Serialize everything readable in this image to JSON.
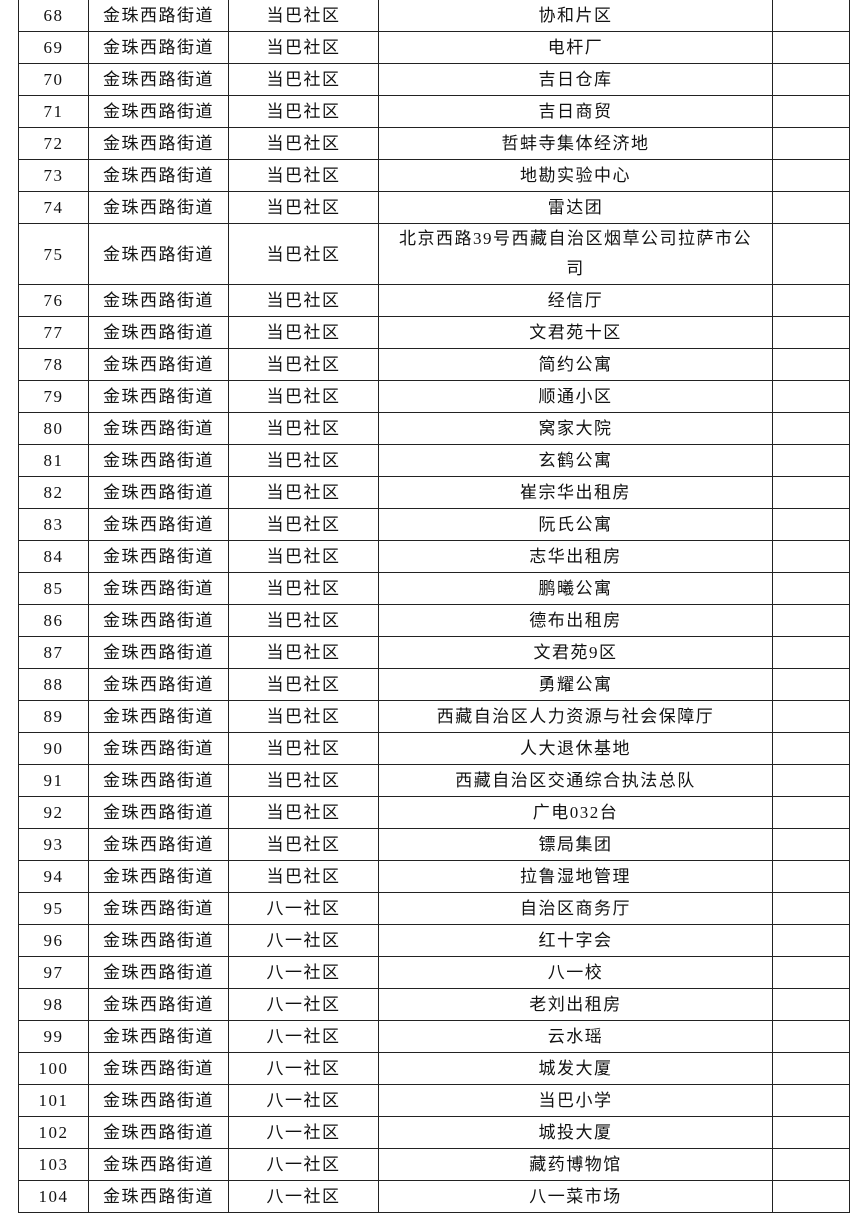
{
  "table": {
    "rows": [
      [
        68,
        "金珠西路街道",
        "当巴社区",
        "协和片区"
      ],
      [
        69,
        "金珠西路街道",
        "当巴社区",
        "电杆厂"
      ],
      [
        70,
        "金珠西路街道",
        "当巴社区",
        "吉日仓库"
      ],
      [
        71,
        "金珠西路街道",
        "当巴社区",
        "吉日商贸"
      ],
      [
        72,
        "金珠西路街道",
        "当巴社区",
        "哲蚌寺集体经济地"
      ],
      [
        73,
        "金珠西路街道",
        "当巴社区",
        "地勘实验中心"
      ],
      [
        74,
        "金珠西路街道",
        "当巴社区",
        "雷达团"
      ],
      [
        75,
        "金珠西路街道",
        "当巴社区",
        "北京西路39号西藏自治区烟草公司拉萨市公司"
      ],
      [
        76,
        "金珠西路街道",
        "当巴社区",
        "经信厅"
      ],
      [
        77,
        "金珠西路街道",
        "当巴社区",
        "文君苑十区"
      ],
      [
        78,
        "金珠西路街道",
        "当巴社区",
        "简约公寓"
      ],
      [
        79,
        "金珠西路街道",
        "当巴社区",
        "顺通小区"
      ],
      [
        80,
        "金珠西路街道",
        "当巴社区",
        "窝家大院"
      ],
      [
        81,
        "金珠西路街道",
        "当巴社区",
        "玄鹤公寓"
      ],
      [
        82,
        "金珠西路街道",
        "当巴社区",
        "崔宗华出租房"
      ],
      [
        83,
        "金珠西路街道",
        "当巴社区",
        "阮氏公寓"
      ],
      [
        84,
        "金珠西路街道",
        "当巴社区",
        "志华出租房"
      ],
      [
        85,
        "金珠西路街道",
        "当巴社区",
        "鹏曦公寓"
      ],
      [
        86,
        "金珠西路街道",
        "当巴社区",
        "德布出租房"
      ],
      [
        87,
        "金珠西路街道",
        "当巴社区",
        "文君苑9区"
      ],
      [
        88,
        "金珠西路街道",
        "当巴社区",
        "勇耀公寓"
      ],
      [
        89,
        "金珠西路街道",
        "当巴社区",
        "西藏自治区人力资源与社会保障厅"
      ],
      [
        90,
        "金珠西路街道",
        "当巴社区",
        "人大退休基地"
      ],
      [
        91,
        "金珠西路街道",
        "当巴社区",
        "西藏自治区交通综合执法总队"
      ],
      [
        92,
        "金珠西路街道",
        "当巴社区",
        "广电032台"
      ],
      [
        93,
        "金珠西路街道",
        "当巴社区",
        "镖局集团"
      ],
      [
        94,
        "金珠西路街道",
        "当巴社区",
        "拉鲁湿地管理"
      ],
      [
        95,
        "金珠西路街道",
        "八一社区",
        "自治区商务厅"
      ],
      [
        96,
        "金珠西路街道",
        "八一社区",
        "红十字会"
      ],
      [
        97,
        "金珠西路街道",
        "八一社区",
        "八一校"
      ],
      [
        98,
        "金珠西路街道",
        "八一社区",
        "老刘出租房"
      ],
      [
        99,
        "金珠西路街道",
        "八一社区",
        "云水瑶"
      ],
      [
        100,
        "金珠西路街道",
        "八一社区",
        "城发大厦"
      ],
      [
        101,
        "金珠西路街道",
        "八一社区",
        "当巴小学"
      ],
      [
        102,
        "金珠西路街道",
        "八一社区",
        "城投大厦"
      ],
      [
        103,
        "金珠西路街道",
        "八一社区",
        "藏药博物馆"
      ],
      [
        104,
        "金珠西路街道",
        "八一社区",
        "八一菜市场"
      ]
    ]
  }
}
